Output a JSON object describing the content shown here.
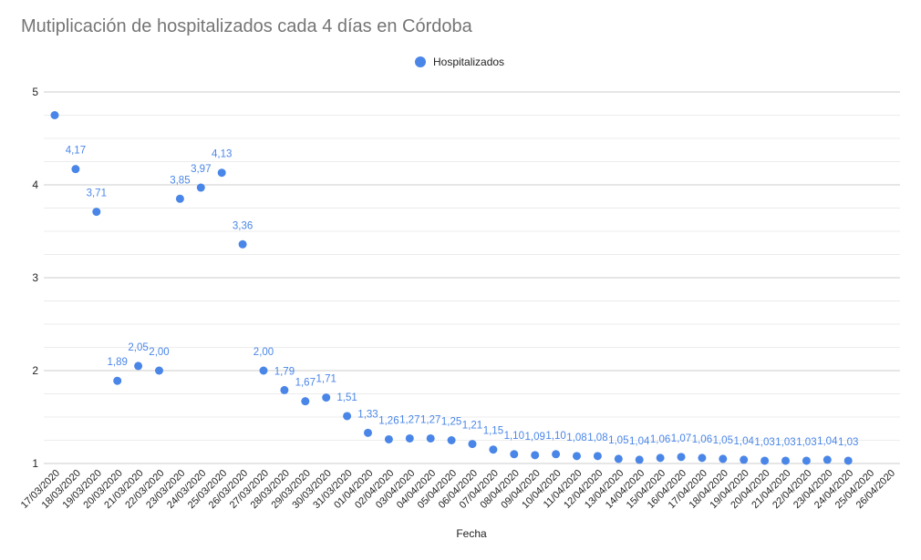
{
  "chart_data": {
    "type": "scatter",
    "title": "Mutiplicación de hospitalizados cada 4 días en Córdoba",
    "xlabel": "Fecha",
    "ylabel": "",
    "ylim": [
      1,
      5
    ],
    "y_ticks": [
      "1",
      "2",
      "3",
      "4",
      "5"
    ],
    "grid": true,
    "legend_position": "top",
    "color": "#4a86e8",
    "categories": [
      "17/03/2020",
      "18/03/2020",
      "19/03/2020",
      "20/03/2020",
      "21/03/2020",
      "22/03/2020",
      "23/03/2020",
      "24/03/2020",
      "25/03/2020",
      "26/03/2020",
      "27/03/2020",
      "28/03/2020",
      "29/03/2020",
      "30/03/2020",
      "31/03/2020",
      "01/04/2020",
      "02/04/2020",
      "03/04/2020",
      "04/04/2020",
      "05/04/2020",
      "06/04/2020",
      "07/04/2020",
      "08/04/2020",
      "09/04/2020",
      "10/04/2020",
      "11/04/2020",
      "12/04/2020",
      "13/04/2020",
      "14/04/2020",
      "15/04/2020",
      "16/04/2020",
      "17/04/2020",
      "18/04/2020",
      "19/04/2020",
      "20/04/2020",
      "21/04/2020",
      "22/04/2020",
      "23/04/2020",
      "24/04/2020",
      "25/04/2020",
      "26/04/2020"
    ],
    "series": [
      {
        "name": "Hospitalizados",
        "values": [
          4.75,
          4.17,
          3.71,
          1.89,
          2.05,
          2.0,
          3.85,
          3.97,
          4.13,
          3.36,
          2.0,
          1.79,
          1.67,
          1.71,
          1.51,
          1.33,
          1.26,
          1.27,
          1.27,
          1.25,
          1.21,
          1.15,
          1.1,
          1.09,
          1.1,
          1.08,
          1.08,
          1.05,
          1.04,
          1.06,
          1.07,
          1.06,
          1.05,
          1.04,
          1.03,
          1.03,
          1.03,
          1.04,
          1.03,
          null,
          null
        ],
        "data_labels": [
          null,
          "4,17",
          "3,71",
          "1,89",
          "2,05",
          "2,00",
          "3,85",
          "3,97",
          "4,13",
          "3,36",
          "2,00",
          "1,79",
          "1,67",
          "1,71",
          "1,51",
          "1,33",
          "1,26",
          "1,27",
          "1,27",
          "1,25",
          "1,21",
          "1,15",
          "1,10",
          "1,09",
          "1,10",
          "1,08",
          "1,08",
          "1,05",
          "1,04",
          "1,06",
          "1,07",
          "1,06",
          "1,05",
          "1,04",
          "1,03",
          "1,03",
          "1,03",
          "1,04",
          "1,03",
          null,
          null
        ]
      }
    ]
  }
}
